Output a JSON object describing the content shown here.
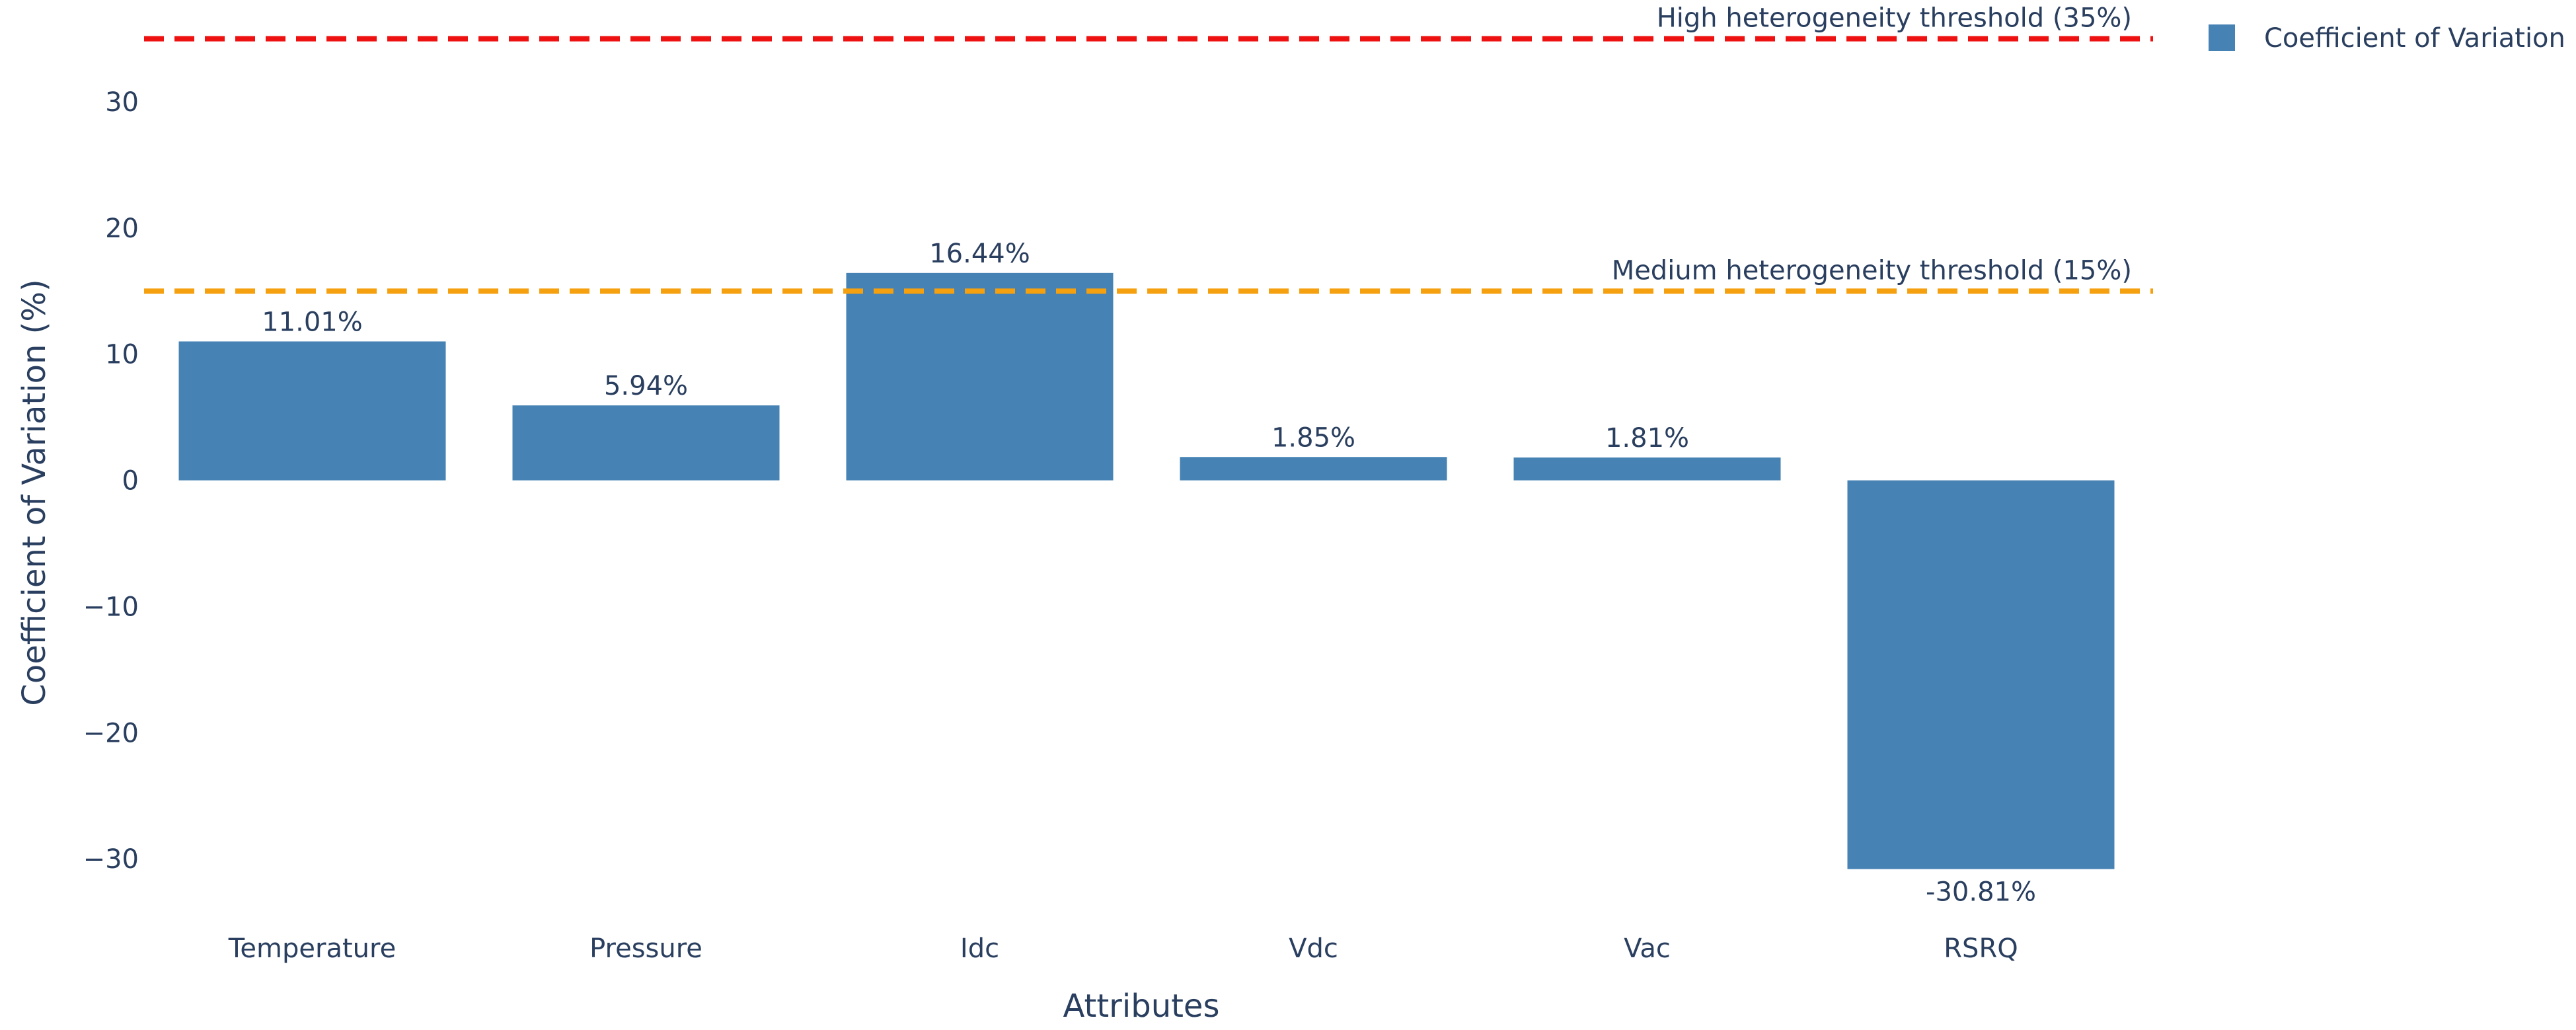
{
  "chart_data": {
    "type": "bar",
    "categories": [
      "Temperature",
      "Pressure",
      "Idc",
      "Vdc",
      "Vac",
      "RSRQ"
    ],
    "series": [
      {
        "name": "Coefficient of Variation",
        "values": [
          11.01,
          5.94,
          16.44,
          1.85,
          1.81,
          -30.81
        ],
        "labels": [
          "11.01%",
          "5.94%",
          "16.44%",
          "1.85%",
          "1.81%",
          "-30.81%"
        ],
        "color": "#4682b4"
      }
    ],
    "xlabel": "Attributes",
    "ylabel": "Coefficient of Variation (%)",
    "ylim": [
      -34.5,
      36.5
    ],
    "yticks": [
      30,
      20,
      10,
      0,
      -10,
      -20,
      -30
    ],
    "ytick_labels": [
      "30",
      "20",
      "10",
      "0",
      "−10",
      "−20",
      "−30"
    ],
    "grid": false,
    "legend": "top-right",
    "thresholds": [
      {
        "value": 35,
        "label": "High heterogeneity threshold (35%)",
        "color": "#ee1111"
      },
      {
        "value": 15,
        "label": "Medium heterogeneity threshold (15%)",
        "color": "#f5a00f"
      }
    ]
  }
}
